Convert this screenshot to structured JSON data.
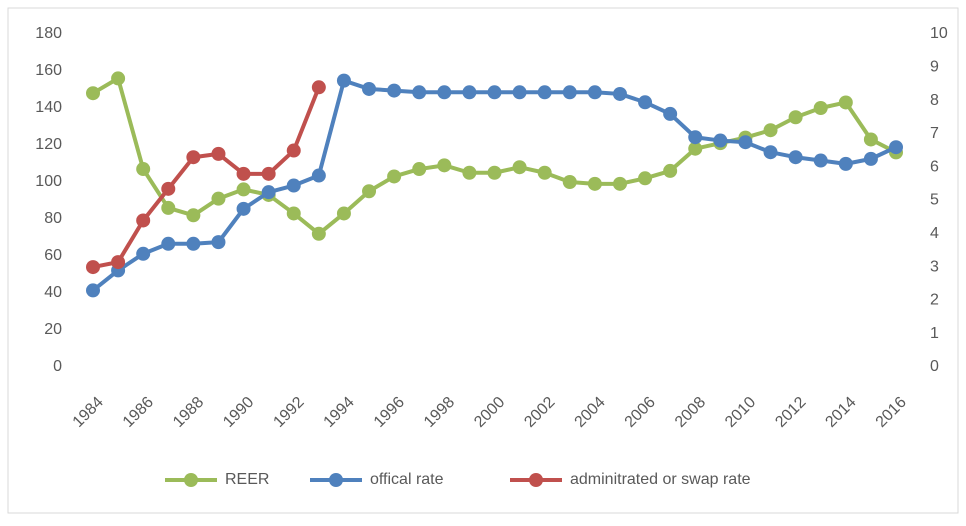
{
  "chart_data": {
    "type": "line",
    "x": [
      1984,
      1985,
      1986,
      1987,
      1988,
      1989,
      1990,
      1991,
      1992,
      1993,
      1994,
      1995,
      1996,
      1997,
      1998,
      1999,
      2000,
      2001,
      2002,
      2003,
      2004,
      2005,
      2006,
      2007,
      2008,
      2009,
      2010,
      2011,
      2012,
      2013,
      2014,
      2015,
      2016
    ],
    "xlim": [
      1984,
      2016
    ],
    "xticks": [
      1984,
      1986,
      1988,
      1990,
      1992,
      1994,
      1996,
      1998,
      2000,
      2002,
      2004,
      2006,
      2008,
      2010,
      2012,
      2014,
      2016
    ],
    "ylim": [
      0,
      180
    ],
    "yticks": [
      0,
      20,
      40,
      60,
      80,
      100,
      120,
      140,
      160,
      180
    ],
    "y2lim": [
      0,
      10
    ],
    "y2ticks": [
      0,
      1,
      2,
      3,
      4,
      5,
      6,
      7,
      8,
      9,
      10
    ],
    "grid": false,
    "legend": "bottom",
    "series": [
      {
        "name": "REER",
        "color": "#9bbb59",
        "values": [
          148,
          156,
          107,
          86,
          82,
          91,
          96,
          93,
          83,
          72,
          83,
          95,
          103,
          107,
          109,
          105,
          105,
          108,
          105,
          100,
          99,
          99,
          102,
          106,
          118,
          121,
          124,
          128,
          135,
          140,
          143,
          123,
          116
        ]
      },
      {
        "name": "offical rate",
        "color": "#4f81bd",
        "axis": "y2",
        "values": [
          2.3,
          2.9,
          3.4,
          3.7,
          3.7,
          3.75,
          4.75,
          5.25,
          5.45,
          5.75,
          8.6,
          8.35,
          8.3,
          8.25,
          8.25,
          8.25,
          8.25,
          8.25,
          8.25,
          8.25,
          8.25,
          8.2,
          7.95,
          7.6,
          6.9,
          6.8,
          6.75,
          6.45,
          6.3,
          6.2,
          6.1,
          6.25,
          6.6
        ]
      },
      {
        "name": "adminitrated or swap rate",
        "color": "#c0504d",
        "axis": "y2",
        "values": [
          3.0,
          3.15,
          4.4,
          5.35,
          6.3,
          6.4,
          5.8,
          5.8,
          6.5,
          8.4,
          null,
          null,
          null,
          null,
          null,
          null,
          null,
          null,
          null,
          null,
          null,
          null,
          null,
          null,
          null,
          null,
          null,
          null,
          null,
          null,
          null,
          null,
          null
        ]
      }
    ]
  }
}
